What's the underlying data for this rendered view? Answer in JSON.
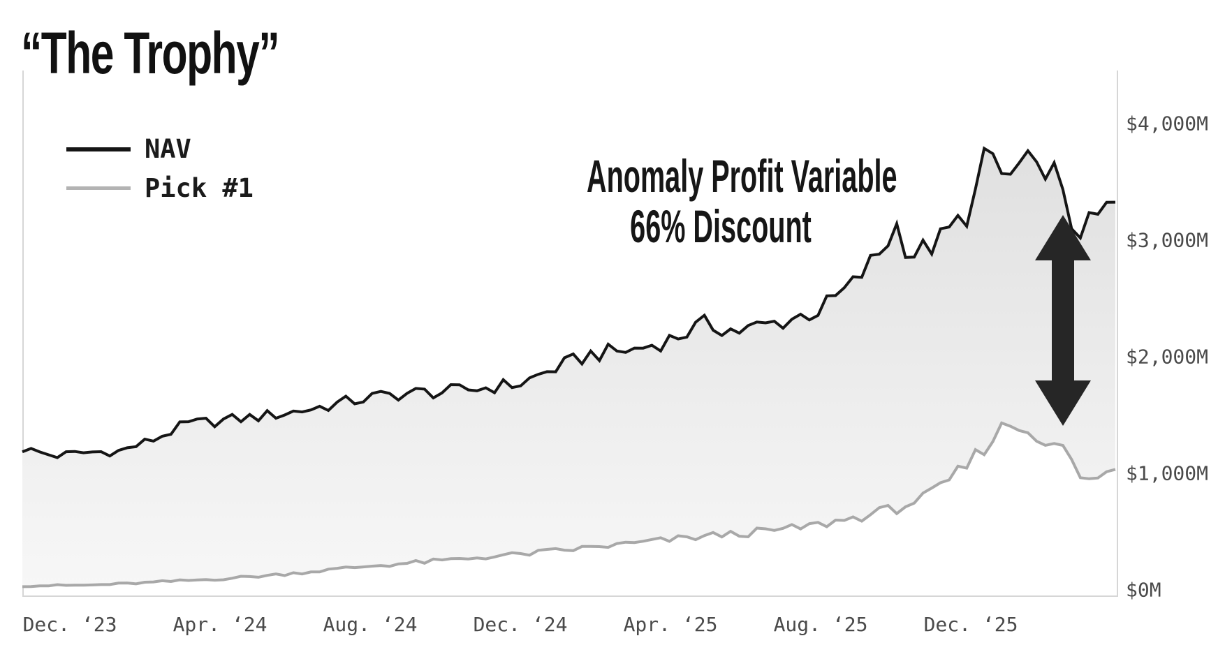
{
  "title": "“The Trophy”",
  "legend": {
    "items": [
      {
        "label": "NAV",
        "color": "#151515",
        "thickness": 6
      },
      {
        "label": "Pick #1",
        "color": "#b3b3b3",
        "thickness": 5
      }
    ]
  },
  "annotation": {
    "line1": "Anomaly Profit Variable",
    "line2": "66% Discount"
  },
  "axes": {
    "y_ticks": [
      {
        "label": "$0M",
        "value": 0
      },
      {
        "label": "$1,000M",
        "value": 1000
      },
      {
        "label": "$2,000M",
        "value": 2000
      },
      {
        "label": "$3,000M",
        "value": 3000
      },
      {
        "label": "$4,000M",
        "value": 4000
      }
    ],
    "x_ticks": [
      "Dec. ‘23",
      "Apr. ‘24",
      "Aug. ‘24",
      "Dec. ‘24",
      "Apr. ‘25",
      "Aug. ‘25",
      "Dec. ‘25"
    ]
  },
  "chart_data": {
    "type": "line",
    "title": "“The Trophy”",
    "unit": "$M",
    "ylim": [
      0,
      4000
    ],
    "x_range": "Nov 2023 to Mar 2026 (weekly)",
    "grid": false,
    "legend_position": "top-left",
    "band_fill": {
      "between": [
        "NAV",
        "Pick #1"
      ],
      "color_top": "#e0e0e0",
      "color_bottom": "#f7f7f7"
    },
    "annotation": {
      "text": [
        "Anomaly Profit Variable",
        "66% Discount"
      ]
    },
    "arrow": {
      "type": "double-headed-vertical",
      "color": "#262626",
      "spans_values_$M": [
        1400,
        3200
      ]
    },
    "points_per_series": 126,
    "series": [
      {
        "name": "NAV",
        "color": "#151515",
        "noise_amp": {
          "mul": 0.04,
          "add": -8,
          "min": 28,
          "max": 150,
          "seed": 1
        },
        "anchors": [
          [
            0.0,
            1210
          ],
          [
            0.03,
            1150
          ],
          [
            0.06,
            1180
          ],
          [
            0.09,
            1190
          ],
          [
            0.12,
            1290
          ],
          [
            0.15,
            1420
          ],
          [
            0.181,
            1450
          ],
          [
            0.22,
            1490
          ],
          [
            0.25,
            1530
          ],
          [
            0.285,
            1590
          ],
          [
            0.318,
            1650
          ],
          [
            0.355,
            1690
          ],
          [
            0.39,
            1700
          ],
          [
            0.42,
            1730
          ],
          [
            0.456,
            1770
          ],
          [
            0.48,
            1870
          ],
          [
            0.52,
            2020
          ],
          [
            0.56,
            2060
          ],
          [
            0.593,
            2150
          ],
          [
            0.625,
            2280
          ],
          [
            0.655,
            2220
          ],
          [
            0.69,
            2290
          ],
          [
            0.73,
            2400
          ],
          [
            0.76,
            2620
          ],
          [
            0.785,
            2900
          ],
          [
            0.8,
            3120
          ],
          [
            0.812,
            2870
          ],
          [
            0.835,
            2960
          ],
          [
            0.868,
            3260
          ],
          [
            0.884,
            3800
          ],
          [
            0.9,
            3480
          ],
          [
            0.916,
            3680
          ],
          [
            0.928,
            3560
          ],
          [
            0.94,
            3700
          ],
          [
            0.958,
            3150
          ],
          [
            0.972,
            3080
          ],
          [
            0.99,
            3260
          ],
          [
            1.0,
            3300
          ]
        ]
      },
      {
        "name": "Pick #1",
        "color": "#a8a8a8",
        "noise_amp": {
          "mul": 0.06,
          "add": 6,
          "min": 6,
          "max": 95,
          "seed": 2
        },
        "anchors": [
          [
            0.0,
            35
          ],
          [
            0.06,
            40
          ],
          [
            0.1,
            55
          ],
          [
            0.14,
            75
          ],
          [
            0.181,
            95
          ],
          [
            0.22,
            120
          ],
          [
            0.25,
            145
          ],
          [
            0.285,
            175
          ],
          [
            0.318,
            205
          ],
          [
            0.355,
            230
          ],
          [
            0.39,
            255
          ],
          [
            0.42,
            280
          ],
          [
            0.456,
            305
          ],
          [
            0.5,
            345
          ],
          [
            0.55,
            390
          ],
          [
            0.593,
            430
          ],
          [
            0.63,
            465
          ],
          [
            0.66,
            485
          ],
          [
            0.7,
            520
          ],
          [
            0.73,
            560
          ],
          [
            0.765,
            625
          ],
          [
            0.8,
            700
          ],
          [
            0.835,
            830
          ],
          [
            0.868,
            1100
          ],
          [
            0.885,
            1290
          ],
          [
            0.905,
            1440
          ],
          [
            0.917,
            1370
          ],
          [
            0.93,
            1330
          ],
          [
            0.943,
            1290
          ],
          [
            0.958,
            1130
          ],
          [
            0.972,
            890
          ],
          [
            0.985,
            990
          ],
          [
            1.0,
            1020
          ]
        ]
      }
    ]
  }
}
